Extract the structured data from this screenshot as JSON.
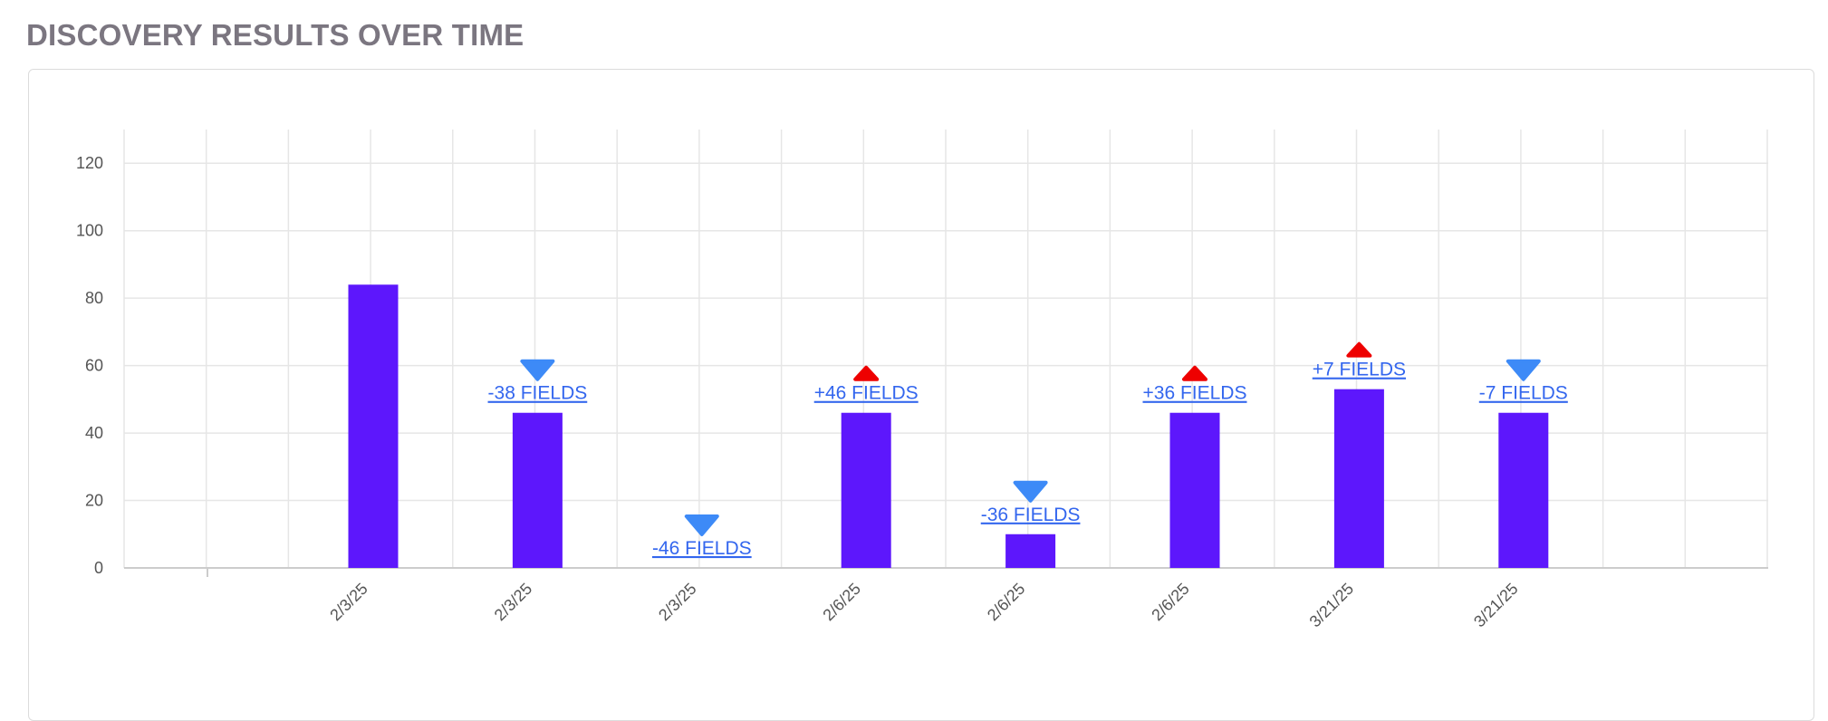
{
  "page": {
    "title": "DISCOVERY RESULTS OVER TIME"
  },
  "colors": {
    "bar": "#5d17fc",
    "down": "#3d8af7",
    "up": "#ee0000",
    "label": "#3366ee",
    "grid": "#e6e6e6",
    "axis": "#cccccc"
  },
  "chart_data": {
    "type": "bar",
    "title": "DISCOVERY RESULTS OVER TIME",
    "xlabel": "",
    "ylabel": "",
    "ylim": [
      0,
      130
    ],
    "y_ticks": [
      0,
      20,
      40,
      60,
      80,
      100,
      120
    ],
    "grid": true,
    "categories": [
      "2/3/25",
      "2/3/25",
      "2/3/25",
      "2/6/25",
      "2/6/25",
      "2/6/25",
      "3/21/25",
      "3/21/25"
    ],
    "values": [
      84,
      46,
      0,
      46,
      10,
      46,
      53,
      46
    ],
    "annotations": [
      null,
      {
        "text": "-38 FIELDS",
        "direction": "down"
      },
      {
        "text": "-46 FIELDS",
        "direction": "down"
      },
      {
        "text": "+46 FIELDS",
        "direction": "up"
      },
      {
        "text": "-36 FIELDS",
        "direction": "down"
      },
      {
        "text": "+36 FIELDS",
        "direction": "up"
      },
      {
        "text": "+7 FIELDS",
        "direction": "up"
      },
      {
        "text": "-7 FIELDS",
        "direction": "down"
      }
    ]
  }
}
